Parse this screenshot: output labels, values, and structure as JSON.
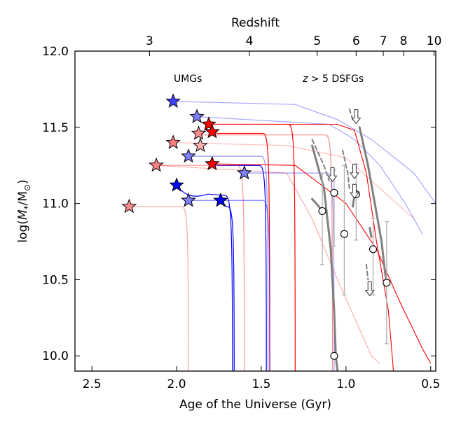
{
  "chart_data": {
    "type": "scatter",
    "title": "",
    "xlabel": "Age of the Universe (Gyr)",
    "ylabel": "log(M*/M☉)",
    "ylabel_main": "log(",
    "ylabel_m": "M",
    "ylabel_star": "*",
    "ylabel_mid": "/M",
    "ylabel_sun": "⊙",
    "ylabel_end": ")",
    "top_axis_label": "Redshift",
    "xlim": [
      2.6,
      0.47
    ],
    "ylim": [
      9.9,
      12.0
    ],
    "x_ticks": [
      2.5,
      2.0,
      1.5,
      1.0,
      0.5
    ],
    "x_tick_labels": [
      "2.5",
      "2.0",
      "1.5",
      "1.0",
      "0.5"
    ],
    "y_ticks": [
      10.0,
      10.5,
      11.0,
      11.5,
      12.0
    ],
    "y_tick_labels": [
      "10.0",
      "10.5",
      "11.0",
      "11.5",
      "12.0"
    ],
    "top_ticks": [
      {
        "label": "3",
        "age": 2.16
      },
      {
        "label": "4",
        "age": 1.57
      },
      {
        "label": "5",
        "age": 1.17
      },
      {
        "label": "6",
        "age": 0.94
      },
      {
        "label": "7",
        "age": 0.78
      },
      {
        "label": "8",
        "age": 0.66
      },
      {
        "label": "10",
        "age": 0.48
      }
    ],
    "annotations": {
      "umgs": "UMGs",
      "dsfg_z": "z",
      "dsfg_rest": " > 5 DSFGs"
    },
    "colors": {
      "red": "#ff0000",
      "lightred": "#f08080",
      "blue": "#0000ff",
      "lightblue": "#8080f0",
      "gray": "#808080",
      "lightgray": "#b0b0b0"
    },
    "umg_stars": [
      {
        "age": 2.02,
        "logM": 11.67,
        "color": "blue",
        "alpha": 0.75
      },
      {
        "age": 1.88,
        "logM": 11.57,
        "color": "blue",
        "alpha": 0.5
      },
      {
        "age": 1.81,
        "logM": 11.52,
        "color": "red",
        "alpha": 1.0
      },
      {
        "age": 1.79,
        "logM": 11.47,
        "color": "red",
        "alpha": 1.0
      },
      {
        "age": 1.87,
        "logM": 11.46,
        "color": "red",
        "alpha": 0.45
      },
      {
        "age": 2.02,
        "logM": 11.4,
        "color": "red",
        "alpha": 0.5
      },
      {
        "age": 1.86,
        "logM": 11.38,
        "color": "red",
        "alpha": 0.3
      },
      {
        "age": 1.93,
        "logM": 11.31,
        "color": "blue",
        "alpha": 0.5
      },
      {
        "age": 1.79,
        "logM": 11.26,
        "color": "red",
        "alpha": 1.0
      },
      {
        "age": 2.12,
        "logM": 11.25,
        "color": "red",
        "alpha": 0.5
      },
      {
        "age": 1.6,
        "logM": 11.2,
        "color": "blue",
        "alpha": 0.5
      },
      {
        "age": 2.0,
        "logM": 11.12,
        "color": "blue",
        "alpha": 1.0
      },
      {
        "age": 1.93,
        "logM": 11.02,
        "color": "blue",
        "alpha": 0.5
      },
      {
        "age": 1.74,
        "logM": 11.02,
        "color": "blue",
        "alpha": 1.0
      },
      {
        "age": 2.28,
        "logM": 10.98,
        "color": "red",
        "alpha": 0.45
      }
    ],
    "umg_tracks": [
      {
        "star": 0,
        "plateau": 11.67,
        "tail": [
          [
            1.3,
            11.65
          ],
          [
            1.05,
            11.55
          ],
          [
            0.85,
            11.42
          ],
          [
            0.6,
            11.2
          ],
          [
            0.47,
            11.0
          ]
        ],
        "color": "blue",
        "alpha": 0.35
      },
      {
        "star": 1,
        "plateau": 11.55,
        "tail": [
          [
            1.1,
            11.52
          ],
          [
            0.95,
            11.42
          ],
          [
            0.8,
            11.25
          ],
          [
            0.65,
            11.0
          ],
          [
            0.55,
            10.8
          ]
        ],
        "color": "blue",
        "alpha": 0.35
      },
      {
        "star": 2,
        "plateau": 11.52,
        "drop_age": 1.3,
        "color": "red",
        "alpha": 1.0
      },
      {
        "star": 3,
        "plateau": 11.46,
        "drop_age": 1.45,
        "color": "red",
        "alpha": 1.0
      },
      {
        "star": 4,
        "plateau": 11.45,
        "drop_age": 1.08,
        "color": "red",
        "alpha": 0.45
      },
      {
        "star": 5,
        "plateau": 11.4,
        "tail": [
          [
            1.35,
            11.38
          ],
          [
            1.0,
            11.3
          ],
          [
            0.8,
            11.1
          ],
          [
            0.6,
            10.9
          ]
        ],
        "color": "red",
        "alpha": 0.25
      },
      {
        "star": 7,
        "plateau": 11.31,
        "drop_age": 1.46,
        "color": "blue",
        "alpha": 0.4
      },
      {
        "star": 8,
        "plateau": 11.25,
        "drop_age": 1.47,
        "color": "blue",
        "alpha": 1.0
      },
      {
        "star": 9,
        "plateau": 11.25,
        "drop_age": 1.6,
        "color": "red",
        "alpha": 0.4
      },
      {
        "star": 10,
        "plateau": 11.2,
        "drop_age": 1.07,
        "color": "blue",
        "alpha": 0.4
      },
      {
        "star": 11,
        "plateau": 11.08,
        "drop_age": 1.67,
        "color": "blue",
        "alpha": 1.0,
        "wiggle": true
      },
      {
        "star": 12,
        "plateau": 11.02,
        "drop_age": 1.45,
        "color": "blue",
        "alpha": 0.5
      },
      {
        "star": 13,
        "plateau": 10.98,
        "drop_age": 1.66,
        "color": "blue",
        "alpha": 1.0
      },
      {
        "star": 14,
        "plateau": 10.98,
        "drop_age": 1.93,
        "color": "red",
        "alpha": 0.35
      }
    ],
    "red_long_curves": [
      {
        "points": [
          [
            1.79,
            11.26
          ],
          [
            1.3,
            11.25
          ],
          [
            1.0,
            11.0
          ],
          [
            0.82,
            10.7
          ],
          [
            0.68,
            10.35
          ],
          [
            0.55,
            10.05
          ],
          [
            0.5,
            9.95
          ]
        ],
        "alpha": 1.0
      },
      {
        "points": [
          [
            1.81,
            11.52
          ],
          [
            1.05,
            11.52
          ],
          [
            0.95,
            11.48
          ],
          [
            0.88,
            11.2
          ],
          [
            0.82,
            10.75
          ],
          [
            0.75,
            10.3
          ],
          [
            0.72,
            9.9
          ]
        ],
        "alpha": 1.0
      },
      {
        "points": [
          [
            2.12,
            11.25
          ],
          [
            1.35,
            11.2
          ],
          [
            1.2,
            10.9
          ],
          [
            1.05,
            10.5
          ],
          [
            0.95,
            10.25
          ],
          [
            0.85,
            10.0
          ],
          [
            0.8,
            9.95
          ]
        ],
        "alpha": 0.35
      }
    ],
    "dsfg_points": [
      {
        "age": 1.07,
        "logM": 11.07,
        "err_low": 0.35,
        "err_high": 0.15
      },
      {
        "age": 0.94,
        "logM": 11.06,
        "err_low": 0.3,
        "err_high": 0.2
      },
      {
        "age": 1.14,
        "logM": 10.95,
        "err_low": 0.35,
        "err_high": 0.25
      },
      {
        "age": 1.01,
        "logM": 10.8,
        "err_low": 0.4,
        "err_high": 0.45
      },
      {
        "age": 0.84,
        "logM": 10.7,
        "err_low": 0.3,
        "err_high": 0.2
      },
      {
        "age": 0.76,
        "logM": 10.48,
        "err_low": 0.4,
        "err_high": 0.4
      },
      {
        "age": 1.07,
        "logM": 10.0,
        "err_low": 0.0,
        "err_high": 0.0
      }
    ],
    "dsfg_tracks": [
      {
        "points": [
          [
            1.2,
            11.38
          ],
          [
            1.13,
            11.1
          ],
          [
            1.09,
            10.7
          ],
          [
            1.07,
            10.3
          ],
          [
            1.06,
            10.0
          ],
          [
            1.05,
            9.9
          ]
        ],
        "dashed": false
      },
      {
        "points": [
          [
            0.92,
            11.5
          ],
          [
            0.87,
            11.25
          ],
          [
            0.83,
            11.0
          ],
          [
            0.79,
            10.75
          ],
          [
            0.77,
            10.55
          ],
          [
            0.76,
            10.48
          ]
        ],
        "dashed": false
      },
      {
        "points": [
          [
            1.2,
            11.03
          ],
          [
            1.16,
            10.98
          ],
          [
            1.14,
            10.95
          ]
        ],
        "dashed": false
      },
      {
        "points": [
          [
            0.86,
            10.84
          ],
          [
            0.85,
            10.78
          ]
        ],
        "dashed": false
      },
      {
        "points": [
          [
            1.2,
            11.42
          ],
          [
            1.13,
            11.25
          ],
          [
            1.1,
            11.15
          ]
        ],
        "dashed": true
      },
      {
        "points": [
          [
            1.02,
            11.35
          ],
          [
            0.99,
            11.2
          ],
          [
            0.98,
            11.1
          ]
        ],
        "dashed": true
      },
      {
        "points": [
          [
            0.98,
            11.62
          ],
          [
            0.96,
            11.55
          ]
        ],
        "dashed": true
      },
      {
        "points": [
          [
            0.96,
            10.98
          ],
          [
            0.95,
            11.05
          ]
        ],
        "dashed": false
      },
      {
        "points": [
          [
            0.88,
            10.6
          ],
          [
            0.87,
            10.5
          ]
        ],
        "dashed": true
      }
    ],
    "upper_limits": [
      {
        "age": 0.94,
        "logM": 11.57
      },
      {
        "age": 1.08,
        "logM": 11.19
      },
      {
        "age": 0.95,
        "logM": 11.21
      },
      {
        "age": 0.95,
        "logM": 11.08
      },
      {
        "age": 0.86,
        "logM": 10.44
      }
    ]
  }
}
